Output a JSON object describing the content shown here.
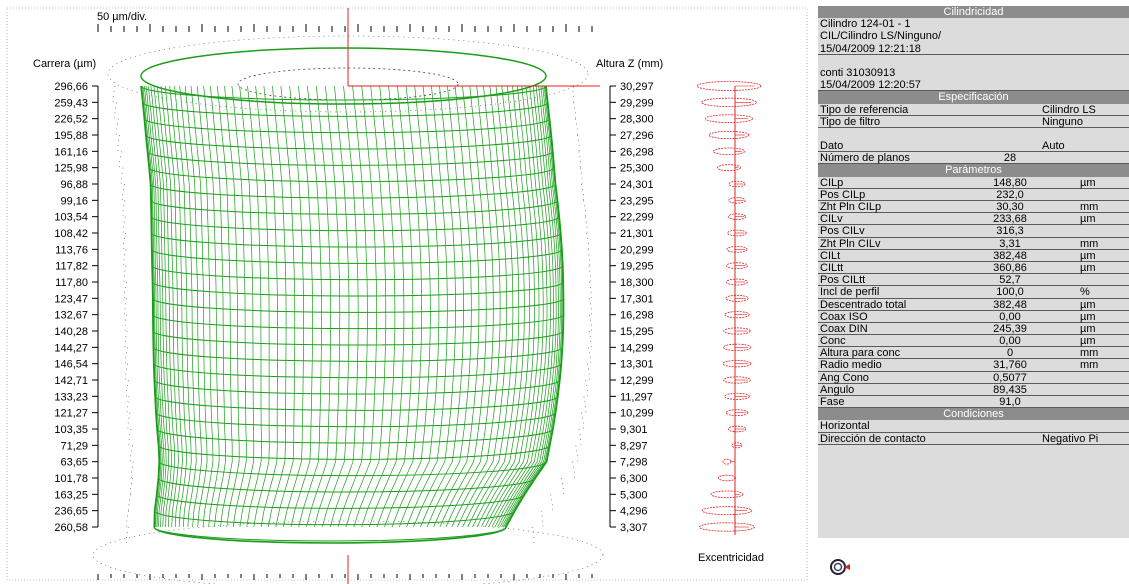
{
  "plot": {
    "scale_label": "50 µm/div.",
    "left_axis_title": "Carrera (µm)",
    "right_axis_title": "Altura Z (mm)",
    "eccentricity_label": "Excentricidad",
    "colors": {
      "surface": "#1a9e1a",
      "axis_line": "#e02020",
      "ecc": "#e02020"
    }
  },
  "chart_data": {
    "type": "surface",
    "x_label": "Carrera (µm)",
    "y_label": "Altura Z (mm)",
    "planes": [
      {
        "carrera": "296,66",
        "z": "30,297"
      },
      {
        "carrera": "259,43",
        "z": "29,299"
      },
      {
        "carrera": "226,52",
        "z": "28,300"
      },
      {
        "carrera": "195,88",
        "z": "27,296"
      },
      {
        "carrera": "161,16",
        "z": "26,298"
      },
      {
        "carrera": "125,98",
        "z": "25,300"
      },
      {
        "carrera": "96,88",
        "z": "24,301"
      },
      {
        "carrera": "99,16",
        "z": "23,295"
      },
      {
        "carrera": "103,54",
        "z": "22,299"
      },
      {
        "carrera": "108,42",
        "z": "21,301"
      },
      {
        "carrera": "113,76",
        "z": "20,299"
      },
      {
        "carrera": "117,82",
        "z": "19,295"
      },
      {
        "carrera": "117,80",
        "z": "18,300"
      },
      {
        "carrera": "123,47",
        "z": "17,301"
      },
      {
        "carrera": "132,67",
        "z": "16,298"
      },
      {
        "carrera": "140,28",
        "z": "15,295"
      },
      {
        "carrera": "144,27",
        "z": "14,299"
      },
      {
        "carrera": "146,54",
        "z": "13,301"
      },
      {
        "carrera": "142,71",
        "z": "12,299"
      },
      {
        "carrera": "133,23",
        "z": "11,297"
      },
      {
        "carrera": "121,27",
        "z": "10,299"
      },
      {
        "carrera": "103,35",
        "z": "9,301"
      },
      {
        "carrera": "71,29",
        "z": "8,297"
      },
      {
        "carrera": "63,65",
        "z": "7,298"
      },
      {
        "carrera": "101,78",
        "z": "6,300"
      },
      {
        "carrera": "163,25",
        "z": "5,300"
      },
      {
        "carrera": "236,65",
        "z": "4,296"
      },
      {
        "carrera": "260,58",
        "z": "3,307"
      }
    ]
  },
  "panel": {
    "header": "Cilindricidad",
    "info": [
      "Cilindro 124-01 - 1",
      "CIL/Cilindro LS/Ninguno/",
      "15/04/2009 12:21:18",
      "",
      "conti 31030913",
      "15/04/2009 12:20:57"
    ],
    "spec_header": "Especificación",
    "spec": [
      {
        "name": "Tipo de referencia",
        "right": "Cilindro LS"
      },
      {
        "name": "Tipo de filtro",
        "right": "Ninguno"
      },
      {
        "name": "",
        "right": ""
      },
      {
        "name": "Dato",
        "right": "Auto"
      },
      {
        "name": "Número de planos",
        "value": "28"
      }
    ],
    "params_header": "Parámetros",
    "params": [
      {
        "name": "CILp",
        "value": "148,80",
        "unit": "µm"
      },
      {
        "name": "Pos CILp",
        "value": "232,0",
        "unit": ""
      },
      {
        "name": "Zht Pln CILp",
        "value": "30,30",
        "unit": "mm"
      },
      {
        "name": "CILv",
        "value": "233,68",
        "unit": "µm"
      },
      {
        "name": "Pos CILv",
        "value": "316,3",
        "unit": ""
      },
      {
        "name": "Zht Pln CILv",
        "value": "3,31",
        "unit": "mm"
      },
      {
        "name": "CILt",
        "value": "382,48",
        "unit": "µm"
      },
      {
        "name": "CILtt",
        "value": "360,86",
        "unit": "µm"
      },
      {
        "name": "Pos CILtt",
        "value": "52,7",
        "unit": ""
      },
      {
        "name": "Incl de perfil",
        "value": "100,0",
        "unit": "%"
      },
      {
        "name": "Descentrado total",
        "value": "382,48",
        "unit": "µm"
      },
      {
        "name": "Coax ISO",
        "value": "0,00",
        "unit": "µm"
      },
      {
        "name": "Coax DIN",
        "value": "245,39",
        "unit": "µm"
      },
      {
        "name": "Conc",
        "value": "0,00",
        "unit": "µm"
      },
      {
        "name": "Altura para conc",
        "value": "0",
        "unit": "mm"
      },
      {
        "name": "Radio medio",
        "value": "31,760",
        "unit": "mm"
      },
      {
        "name": "Ang Cono",
        "value": "0,5077",
        "unit": ""
      },
      {
        "name": "Angulo",
        "value": "89,435",
        "unit": ""
      },
      {
        "name": "Fase",
        "value": "91,0",
        "unit": ""
      }
    ],
    "cond_header": "Condiciones",
    "cond": [
      {
        "name": "Horizontal",
        "right": ""
      },
      {
        "name": "Dirección de contacto",
        "right": "Negativo Pi"
      }
    ]
  }
}
